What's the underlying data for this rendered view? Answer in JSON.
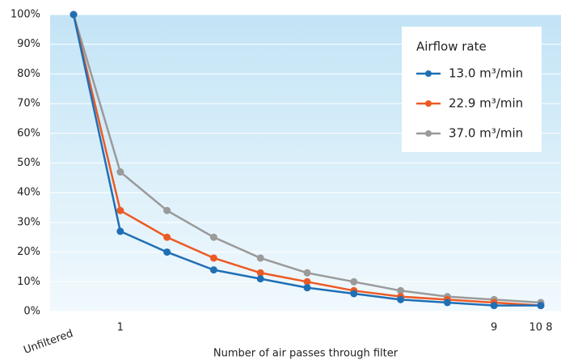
{
  "chart_data": {
    "type": "line",
    "x_label": "Number of air passes through filter",
    "categories": [
      "Unfiltered",
      "1",
      null,
      null,
      null,
      null,
      null,
      null,
      null,
      "9",
      "10 8"
    ],
    "series": [
      {
        "name": "13.0 m³/min",
        "color": "#1f6fb5",
        "values": [
          100,
          27,
          20,
          14,
          11,
          8,
          6,
          4,
          3,
          2,
          2
        ]
      },
      {
        "name": "22.9 m³/min",
        "color": "#ec5a24",
        "values": [
          100,
          34,
          25,
          18,
          13,
          10,
          7,
          5,
          4,
          3,
          2
        ]
      },
      {
        "name": "37.0 m³/min",
        "color": "#9a9a9a",
        "values": [
          100,
          47,
          34,
          25,
          18,
          13,
          10,
          7,
          5,
          4,
          3
        ]
      }
    ],
    "legend_title": "Airflow rate",
    "legend": "upper right",
    "ylim": [
      0,
      100
    ],
    "yticks": [
      {
        "value": 0,
        "label": "0%"
      },
      {
        "value": 10,
        "label": "10%"
      },
      {
        "value": 20,
        "label": "20%"
      },
      {
        "value": 30,
        "label": "30%"
      },
      {
        "value": 40,
        "label": "40%"
      },
      {
        "value": 50,
        "label": "50%"
      },
      {
        "value": 60,
        "label": "60%"
      },
      {
        "value": 70,
        "label": "70%"
      },
      {
        "value": 80,
        "label": "80%"
      },
      {
        "value": 90,
        "label": "90%"
      },
      {
        "value": 100,
        "label": "100%"
      }
    ],
    "grid": true
  }
}
